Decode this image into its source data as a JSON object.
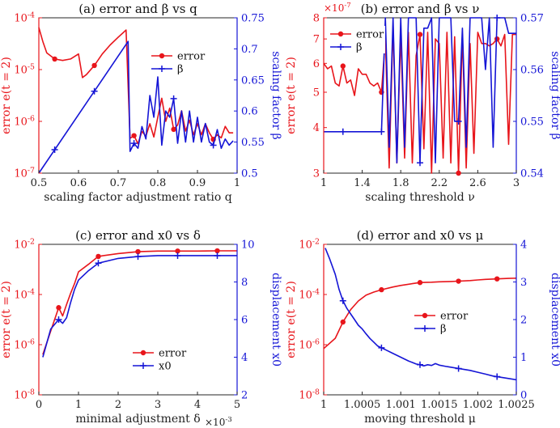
{
  "figure": {
    "panel_count": 4
  },
  "colors": {
    "left_axis": "#e8151b",
    "right_axis": "#1515d6",
    "axis": "#262626"
  },
  "chart_data": [
    {
      "id": "a",
      "type": "line",
      "title": "(a) error and β vs q",
      "xlabel": "scaling factor adjustment ratio q",
      "ylabel_left": "error e(t = 2)",
      "ylabel_right": "scaling factor β",
      "xlim": [
        0.5,
        1.0
      ],
      "xscale": "linear",
      "ylim_left": [
        1e-07,
        0.0001
      ],
      "yscale_left": "log",
      "ylim_right": [
        0.5,
        0.75
      ],
      "yscale_right": "linear",
      "xticks": [
        0.5,
        0.6,
        0.7,
        0.8,
        0.9,
        1
      ],
      "xticklabels": [
        "0.5",
        "0.6",
        "0.7",
        "0.8",
        "0.9",
        "1"
      ],
      "yticks_left": [
        1e-07,
        1e-06,
        1e-05,
        0.0001
      ],
      "yticklabels_left": [
        "10^-7",
        "10^-6",
        "10^-5",
        "10^-4"
      ],
      "yticks_right": [
        0.5,
        0.55,
        0.6,
        0.65,
        0.7,
        0.75
      ],
      "yticklabels_right": [
        "0.5",
        "0.55",
        "0.6",
        "0.65",
        "0.7",
        "0.75"
      ],
      "legend": {
        "position": "upper-right",
        "entries": [
          "error",
          "β"
        ]
      },
      "exponent_label": "",
      "series": [
        {
          "name": "error",
          "axis": "left",
          "marker": "dot",
          "x": [
            0.5,
            0.51,
            0.52,
            0.54,
            0.56,
            0.58,
            0.6,
            0.61,
            0.62,
            0.64,
            0.66,
            0.68,
            0.7,
            0.72,
            0.73,
            0.74,
            0.75,
            0.76,
            0.77,
            0.78,
            0.79,
            0.8,
            0.81,
            0.82,
            0.83,
            0.84,
            0.85,
            0.86,
            0.87,
            0.88,
            0.89,
            0.9,
            0.91,
            0.92,
            0.93,
            0.94,
            0.95,
            0.96,
            0.97,
            0.98,
            0.99
          ],
          "y": [
            6.5e-05,
            3.5e-05,
            2.1e-05,
            1.6e-05,
            1.5e-05,
            1.6e-05,
            2e-05,
            7e-06,
            8e-06,
            1.2e-05,
            2e-05,
            3e-05,
            4.2e-05,
            5.8e-05,
            4.7e-07,
            5.3e-07,
            3.7e-07,
            6.4e-07,
            5.2e-07,
            9e-07,
            5e-07,
            1.2e-06,
            2.8e-06,
            1e-06,
            1.8e-06,
            7e-07,
            8.5e-07,
            1.6e-06,
            6.5e-07,
            1.05e-06,
            5.5e-07,
            9e-07,
            5.5e-07,
            9e-07,
            6e-07,
            4.5e-07,
            5.5e-07,
            4.8e-07,
            8e-07,
            6e-07,
            6e-07
          ],
          "markers": [
            0.54,
            0.64,
            0.74,
            0.84,
            0.94
          ]
        },
        {
          "name": "β",
          "axis": "right",
          "marker": "plus",
          "x": [
            0.5,
            0.725,
            0.73,
            0.74,
            0.75,
            0.76,
            0.77,
            0.78,
            0.79,
            0.8,
            0.81,
            0.82,
            0.83,
            0.84,
            0.85,
            0.86,
            0.87,
            0.88,
            0.89,
            0.9,
            0.91,
            0.92,
            0.93,
            0.94,
            0.95,
            0.96,
            0.97,
            0.98,
            0.99
          ],
          "y": [
            0.5,
            0.712,
            0.535,
            0.548,
            0.54,
            0.575,
            0.555,
            0.625,
            0.59,
            0.655,
            0.545,
            0.6,
            0.59,
            0.62,
            0.548,
            0.6,
            0.55,
            0.6,
            0.55,
            0.59,
            0.55,
            0.58,
            0.55,
            0.545,
            0.57,
            0.54,
            0.555,
            0.545,
            0.552
          ],
          "markers": [
            0.54,
            0.64,
            0.74,
            0.84,
            0.94
          ]
        }
      ]
    },
    {
      "id": "b",
      "type": "line",
      "title": "(b) error and β vs ν",
      "xlabel": "scaling threshold ν",
      "ylabel_left": "error e(t = 2)",
      "ylabel_right": "scaling factor β",
      "xlim": [
        1.0,
        3.0
      ],
      "xscale": "linear",
      "ylim_left": [
        3.0,
        8.0
      ],
      "yscale_left": "log",
      "ylim_right": [
        0.54,
        0.57
      ],
      "yscale_right": "linear",
      "xticks": [
        1,
        1.4,
        1.8,
        2.2,
        2.6,
        3
      ],
      "xticklabels": [
        "1",
        "1.4",
        "1.8",
        "2.2",
        "2.6",
        "3"
      ],
      "yticks_left": [
        3,
        4,
        5,
        6,
        7,
        8
      ],
      "yticklabels_left": [
        "3",
        "4",
        "5",
        "6",
        "7",
        "8"
      ],
      "yticks_right": [
        0.54,
        0.55,
        0.56,
        0.57
      ],
      "yticklabels_right": [
        "0.54",
        "0.55",
        "0.56",
        "0.57"
      ],
      "legend": {
        "position": "upper-left",
        "entries": [
          "error",
          "β"
        ]
      },
      "exponent_label": "×10^-7",
      "series": [
        {
          "name": "error",
          "axis": "left",
          "marker": "dot",
          "x": [
            1.0,
            1.04,
            1.08,
            1.12,
            1.16,
            1.2,
            1.24,
            1.28,
            1.32,
            1.36,
            1.4,
            1.44,
            1.48,
            1.52,
            1.56,
            1.6,
            1.64,
            1.68,
            1.72,
            1.76,
            1.8,
            1.84,
            1.88,
            1.92,
            1.96,
            2.0,
            2.04,
            2.08,
            2.12,
            2.16,
            2.2,
            2.24,
            2.28,
            2.32,
            2.36,
            2.4,
            2.44,
            2.48,
            2.52,
            2.56,
            2.6,
            2.64,
            2.68,
            2.72,
            2.76,
            2.8,
            2.84,
            2.88,
            2.92,
            2.96,
            3.0
          ],
          "y": [
            6.0,
            5.8,
            5.9,
            5.3,
            5.2,
            5.9,
            5.3,
            5.4,
            4.9,
            5.8,
            5.6,
            5.6,
            5.3,
            5.2,
            5.3,
            5.0,
            7.0,
            3.1,
            7.6,
            3.2,
            7.2,
            3.3,
            7.3,
            3.2,
            6.3,
            7.2,
            3.5,
            7.3,
            3.0,
            7.0,
            6.8,
            3.3,
            7.3,
            3.2,
            7.1,
            3.0,
            7.2,
            3.1,
            6.8,
            3.4,
            7.3,
            6.8,
            6.8,
            6.7,
            6.8,
            7.0,
            6.7,
            7.2,
            3.6,
            7.2,
            7.2
          ],
          "markers": [
            1.2,
            1.6,
            2.0,
            2.4,
            2.8
          ]
        },
        {
          "name": "β",
          "axis": "right",
          "marker": "plus",
          "x": [
            1.0,
            1.6,
            1.64,
            1.68,
            1.72,
            1.76,
            1.8,
            1.84,
            1.88,
            1.92,
            1.96,
            2.0,
            2.04,
            2.08,
            2.12,
            2.16,
            2.2,
            2.24,
            2.28,
            2.32,
            2.36,
            2.4,
            2.44,
            2.48,
            2.52,
            2.56,
            2.6,
            2.64,
            2.68,
            2.72,
            2.76,
            2.8,
            2.84,
            2.88,
            2.92,
            2.96,
            3.0
          ],
          "y": [
            0.548,
            0.548,
            0.57,
            0.545,
            0.57,
            0.542,
            0.57,
            0.545,
            0.57,
            0.57,
            0.57,
            0.542,
            0.568,
            0.568,
            0.57,
            0.542,
            0.57,
            0.57,
            0.57,
            0.57,
            0.55,
            0.55,
            0.568,
            0.545,
            0.57,
            0.57,
            0.57,
            0.57,
            0.56,
            0.57,
            0.545,
            0.57,
            0.57,
            0.57,
            0.567,
            0.567,
            0.567
          ],
          "markers": [
            1.2,
            1.6,
            2.0,
            2.4,
            2.8
          ]
        }
      ]
    },
    {
      "id": "c",
      "type": "line",
      "title": "(c) error and x0 vs δ",
      "xlabel": "minimal adjustment δ",
      "ylabel_left": "error e(t = 2)",
      "ylabel_right": "displacement x0",
      "xlim": [
        0,
        5
      ],
      "xscale": "linear",
      "ylim_left": [
        1e-08,
        0.01
      ],
      "yscale_left": "log",
      "ylim_right": [
        2,
        10
      ],
      "yscale_right": "linear",
      "xticks": [
        0,
        1,
        2,
        3,
        4,
        5
      ],
      "xticklabels": [
        "0",
        "1",
        "2",
        "3",
        "4",
        "5"
      ],
      "yticks_left": [
        1e-08,
        1e-06,
        0.0001,
        0.01
      ],
      "yticklabels_left": [
        "10^-8",
        "10^-6",
        "10^-4",
        "10^-2"
      ],
      "yticks_right": [
        2,
        4,
        6,
        8,
        10
      ],
      "yticklabels_right": [
        "2",
        "4",
        "6",
        "8",
        "10"
      ],
      "legend": {
        "position": "lower-right",
        "entries": [
          "error",
          "x0"
        ]
      },
      "exponent_label": "×10^-3",
      "series": [
        {
          "name": "error",
          "axis": "left",
          "marker": "dot",
          "x": [
            0.1,
            0.3,
            0.5,
            0.6,
            0.7,
            0.8,
            0.9,
            1.0,
            1.25,
            1.5,
            2.0,
            2.5,
            3.0,
            3.5,
            4.0,
            4.5,
            5.0
          ],
          "y": [
            4e-07,
            3.5e-06,
            3e-05,
            1.4e-05,
            4e-05,
            0.00011,
            0.00027,
            0.0008,
            0.0016,
            0.0033,
            0.0043,
            0.0051,
            0.0054,
            0.0054,
            0.0054,
            0.0055,
            0.0055
          ],
          "markers": [
            0.5,
            1.5,
            2.5,
            3.5,
            4.5
          ]
        },
        {
          "name": "x0",
          "axis": "right",
          "marker": "plus",
          "x": [
            0.1,
            0.3,
            0.5,
            0.6,
            0.7,
            0.8,
            0.9,
            1.0,
            1.25,
            1.5,
            2.0,
            2.5,
            3.0,
            3.5,
            4.0,
            4.5,
            5.0
          ],
          "y": [
            4.0,
            5.5,
            6.0,
            5.8,
            6.1,
            6.9,
            7.6,
            8.1,
            8.6,
            9.0,
            9.25,
            9.35,
            9.4,
            9.4,
            9.4,
            9.4,
            9.4
          ],
          "markers": [
            0.5,
            1.5,
            2.5,
            3.5,
            4.5
          ]
        }
      ]
    },
    {
      "id": "d",
      "type": "line",
      "title": "(d) error and x0 vs μ",
      "xlabel": "moving threshold μ",
      "ylabel_left": "error e(t = 2)",
      "ylabel_right": "displacement x0",
      "xlim": [
        1.0,
        1.0025
      ],
      "xscale": "linear",
      "ylim_left": [
        1e-08,
        0.01
      ],
      "yscale_left": "log",
      "ylim_right": [
        0,
        4
      ],
      "yscale_right": "linear",
      "xticks": [
        1.0,
        1.0005,
        1.001,
        1.0015,
        1.002,
        1.0025
      ],
      "xticklabels": [
        "1",
        "1.0005",
        "1.001",
        "1.0015",
        "1.002",
        "1.0025"
      ],
      "yticks_left": [
        1e-08,
        1e-06,
        0.0001,
        0.01
      ],
      "yticklabels_left": [
        "10^-8",
        "10^-6",
        "10^-4",
        "10^-2"
      ],
      "yticks_right": [
        0,
        1,
        2,
        3,
        4
      ],
      "yticklabels_right": [
        "0",
        "1",
        "2",
        "3",
        "4"
      ],
      "legend": {
        "position": "center-right",
        "entries": [
          "error",
          "β"
        ]
      },
      "exponent_label": "",
      "series": [
        {
          "name": "error",
          "axis": "left",
          "marker": "dot",
          "x": [
            1.0,
            1.00015,
            1.00025,
            1.00035,
            1.00045,
            1.00055,
            1.00065,
            1.00075,
            1.0009,
            1.001,
            1.00115,
            1.00125,
            1.0014,
            1.0015,
            1.00165,
            1.00175,
            1.0019,
            1.002,
            1.0021,
            1.00225,
            1.0024,
            1.0025
          ],
          "y": [
            7e-07,
            1.8e-06,
            8e-06,
            2.5e-05,
            5.5e-05,
            9.5e-05,
            0.000125,
            0.000155,
            0.0002,
            0.00023,
            0.00027,
            0.0003,
            0.00031,
            0.00032,
            0.00033,
            0.00034,
            0.00036,
            0.00038,
            0.0004,
            0.00042,
            0.00044,
            0.00045
          ],
          "markers": [
            1.00025,
            1.00075,
            1.00125,
            1.00175,
            1.00225
          ]
        },
        {
          "name": "β",
          "axis": "right",
          "marker": "plus",
          "x": [
            1.00002,
            1.00008,
            1.00015,
            1.0002,
            1.00025,
            1.0003,
            1.00035,
            1.0004,
            1.00045,
            1.0005,
            1.00055,
            1.0006,
            1.00065,
            1.0007,
            1.00075,
            1.0008,
            1.0009,
            1.001,
            1.0011,
            1.0012,
            1.00125,
            1.0013,
            1.00135,
            1.0014,
            1.00145,
            1.0015,
            1.0016,
            1.00175,
            1.0019,
            1.002,
            1.0021,
            1.0022,
            1.00235,
            1.0025
          ],
          "y": [
            3.9,
            3.6,
            3.2,
            2.8,
            2.5,
            2.3,
            2.15,
            2.0,
            1.85,
            1.75,
            1.62,
            1.5,
            1.4,
            1.3,
            1.25,
            1.2,
            1.1,
            1.0,
            0.9,
            0.82,
            0.8,
            0.77,
            0.8,
            0.78,
            0.83,
            0.79,
            0.75,
            0.7,
            0.65,
            0.6,
            0.55,
            0.5,
            0.45,
            0.4
          ],
          "markers": [
            1.00025,
            1.00075,
            1.00125,
            1.00175,
            1.00225
          ]
        }
      ]
    }
  ]
}
